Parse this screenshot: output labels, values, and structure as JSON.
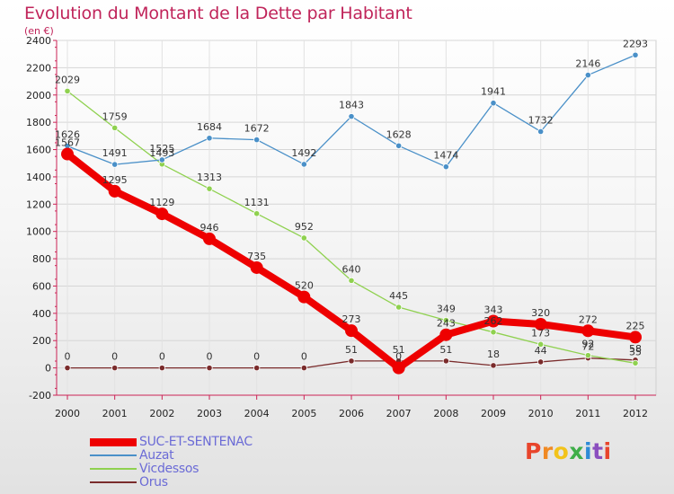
{
  "title": "Evolution du Montant de la Dette par Habitant",
  "subtitle": "(en €)",
  "brand": {
    "text": "Proxiti",
    "letter_colors": [
      "#e8452c",
      "#f08a24",
      "#f2c31b",
      "#3fae49",
      "#2e8bd6",
      "#8b4fbf",
      "#e8452c"
    ]
  },
  "legend": [
    {
      "label": "SUC-ET-SENTENAC",
      "color": "#ee0000"
    },
    {
      "label": "Auzat",
      "color": "#4a90c8"
    },
    {
      "label": "Vicdessos",
      "color": "#8fd14f"
    },
    {
      "label": "Orus",
      "color": "#7a2b2b"
    }
  ],
  "chart_data": {
    "type": "line",
    "title": "Evolution du Montant de la Dette par Habitant",
    "subtitle": "(en €)",
    "x": [
      "2000",
      "2001",
      "2002",
      "2003",
      "2004",
      "2005",
      "2006",
      "2007",
      "2008",
      "2009",
      "2010",
      "2011",
      "2012"
    ],
    "ylim": [
      -200,
      2400
    ],
    "yticks": [
      -200,
      0,
      200,
      400,
      600,
      800,
      1000,
      1200,
      1400,
      1600,
      1800,
      2000,
      2200,
      2400
    ],
    "grid": true,
    "series": [
      {
        "name": "SUC-ET-SENTENAC",
        "color": "#ee0000",
        "values": [
          1567,
          1295,
          1129,
          946,
          735,
          520,
          273,
          0,
          243,
          343,
          320,
          272,
          225
        ],
        "labels": [
          "1567",
          "1295",
          "1129",
          "946",
          "735",
          "520",
          "273",
          "0",
          "243",
          "343",
          "320",
          "272",
          "225"
        ]
      },
      {
        "name": "Auzat",
        "color": "#4a90c8",
        "values": [
          1626,
          1491,
          1525,
          1684,
          1672,
          1492,
          1843,
          1628,
          1474,
          1941,
          1732,
          2146,
          2293
        ],
        "labels": [
          "1626",
          "1491",
          "1525",
          "1684",
          "1672",
          "1492",
          "1843",
          "1628",
          "1474",
          "1941",
          "1732",
          "2146",
          "2293"
        ]
      },
      {
        "name": "Vicdessos",
        "color": "#8fd14f",
        "values": [
          2029,
          1759,
          1493,
          1313,
          1131,
          952,
          640,
          445,
          349,
          262,
          173,
          92,
          35
        ],
        "labels": [
          "2029",
          "1759",
          "1493",
          "1313",
          "1131",
          "952",
          "640",
          "445",
          "349",
          "262",
          "173",
          "92",
          "35"
        ]
      },
      {
        "name": "Orus",
        "color": "#7a2b2b",
        "values": [
          0,
          0,
          0,
          0,
          0,
          0,
          51,
          51,
          51,
          18,
          44,
          72,
          58
        ],
        "labels": [
          "0",
          "0",
          "0",
          "0",
          "0",
          "0",
          "51",
          "51",
          "51",
          "18",
          "44",
          "72",
          "58"
        ]
      }
    ]
  }
}
